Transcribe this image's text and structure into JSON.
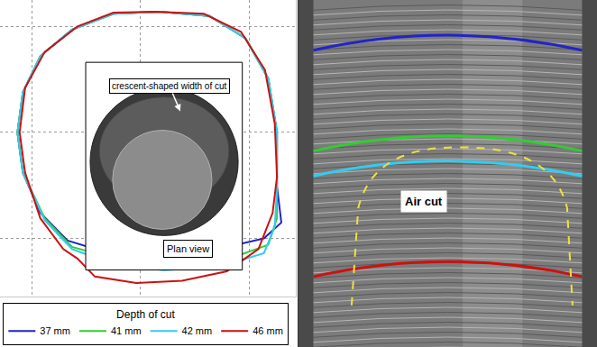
{
  "chart_data": [
    {
      "type": "line",
      "legend_title": "Depth of cut",
      "legend": "bottom left",
      "grid": true,
      "tick_labels": false,
      "xlim": [
        -1.29,
        1.42
      ],
      "ylim": [
        -1.55,
        1.25
      ],
      "xticks": [
        -1,
        0,
        1
      ],
      "yticks": [
        -1,
        0,
        1
      ],
      "annotations": [
        "crescent-shaped width of cut",
        "Plan view"
      ],
      "series": [
        {
          "name": "37 mm",
          "color": "#2323c8",
          "x": [
            0.17,
            0.63,
            0.96,
            1.17,
            1.25,
            1.25,
            1.29,
            1.13,
            0.71,
            0.21,
            -0.29,
            -0.67,
            -0.92,
            -1.08,
            -1.13,
            -1.08,
            -0.92,
            -0.63,
            -0.25,
            0.17
          ],
          "y": [
            1.14,
            1.1,
            0.89,
            0.51,
            0,
            -0.51,
            -0.85,
            -1.0,
            -1.1,
            -1.14,
            -1.14,
            -1.02,
            -0.76,
            -0.38,
            0,
            0.38,
            0.72,
            0.97,
            1.12,
            1.14
          ]
        },
        {
          "name": "41 mm",
          "color": "#33cc33",
          "x": [
            0.17,
            0.63,
            0.96,
            1.17,
            1.25,
            1.25,
            1.25,
            1.17,
            0.79,
            0.29,
            -0.21,
            -0.63,
            -0.88,
            -1.08,
            -1.13,
            -1.08,
            -0.92,
            -0.63,
            -0.25,
            0.17
          ],
          "y": [
            1.14,
            1.1,
            0.89,
            0.51,
            0,
            -0.51,
            -0.81,
            -1.06,
            -1.2,
            -1.25,
            -1.2,
            -1.08,
            -0.81,
            -0.38,
            0,
            0.38,
            0.72,
            0.97,
            1.12,
            1.14
          ]
        },
        {
          "name": "42 mm",
          "color": "#33ccee",
          "x": [
            0.17,
            0.63,
            0.96,
            1.17,
            1.25,
            1.25,
            1.23,
            1.13,
            0.71,
            0.21,
            -0.29,
            -0.63,
            -0.88,
            -1.08,
            -1.13,
            -1.08,
            -0.92,
            -0.63,
            -0.25,
            0.17
          ],
          "y": [
            1.14,
            1.1,
            0.89,
            0.51,
            0,
            -0.51,
            -0.89,
            -1.14,
            -1.27,
            -1.3,
            -1.23,
            -1.1,
            -0.83,
            -0.38,
            0,
            0.38,
            0.72,
            0.97,
            1.12,
            1.14
          ]
        },
        {
          "name": "46 mm",
          "color": "#cc1111",
          "x": [
            0.13,
            0.58,
            0.92,
            1.14,
            1.23,
            1.25,
            1.21,
            1.08,
            0.79,
            0.38,
            -0.04,
            -0.42,
            -0.58,
            -0.71,
            -0.92,
            -1.06,
            -1.11,
            -1.06,
            -0.88,
            -0.58,
            -0.25,
            0.13
          ],
          "y": [
            1.14,
            1.12,
            0.95,
            0.59,
            0.08,
            -0.42,
            -0.76,
            -1.1,
            -1.31,
            -1.4,
            -1.42,
            -1.36,
            -1.19,
            -1.1,
            -0.81,
            -0.38,
            0,
            0.42,
            0.76,
            1.0,
            1.13,
            1.14
          ]
        }
      ]
    },
    {
      "type": "lines",
      "tick_labels": false,
      "ylim": [
        49.4,
        35.6
      ],
      "yticks": [],
      "values": [
        37,
        41,
        42,
        46
      ],
      "colors": [
        "#2323c8",
        "#33cc33",
        "#33ccee",
        "#cc1111"
      ],
      "annotations": [
        "Air cut"
      ]
    }
  ]
}
